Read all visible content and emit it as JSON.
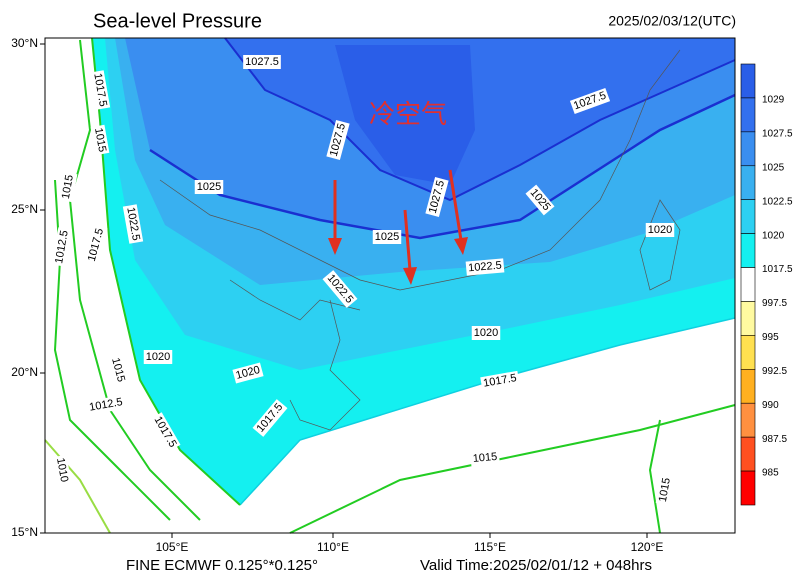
{
  "header": {
    "title": "Sea-level Pressure",
    "time": "2025/02/03/12(UTC)"
  },
  "map": {
    "lat_labels": [
      "30°N",
      "25°N",
      "20°N",
      "15°N"
    ],
    "lon_labels": [
      "105°E",
      "110°E",
      "115°E",
      "120°E"
    ],
    "annotation": "冷空气",
    "contour_labels": [
      1027.5,
      1027.5,
      1027.5,
      1025,
      1025,
      1027.5,
      1025,
      1022.5,
      1017.5,
      1015,
      1015,
      1017.5,
      1012.5,
      1022.5,
      1020,
      1022.5,
      1020,
      1020,
      1020,
      1017.5,
      1017.5,
      1015,
      1012.5,
      1017.5,
      1015,
      1010,
      1015
    ]
  },
  "colorbar": {
    "levels": [
      1029,
      1027.5,
      1025,
      1022.5,
      1020,
      1017.5,
      997.5,
      995,
      992.5,
      990,
      987.5,
      985
    ],
    "colors": [
      "#2a5ee8",
      "#3370ee",
      "#3a8ef0",
      "#39b0f0",
      "#2dd0f2",
      "#14f0f0",
      "#ffffff",
      "#fffaa0",
      "#ffe050",
      "#ffb020",
      "#ff9040",
      "#ff5020",
      "#ff0000"
    ]
  },
  "footer": {
    "model": "FINE ECMWF 0.125°*0.125°",
    "valid": "Valid Time:2025/02/01/12 + 048hrs"
  }
}
